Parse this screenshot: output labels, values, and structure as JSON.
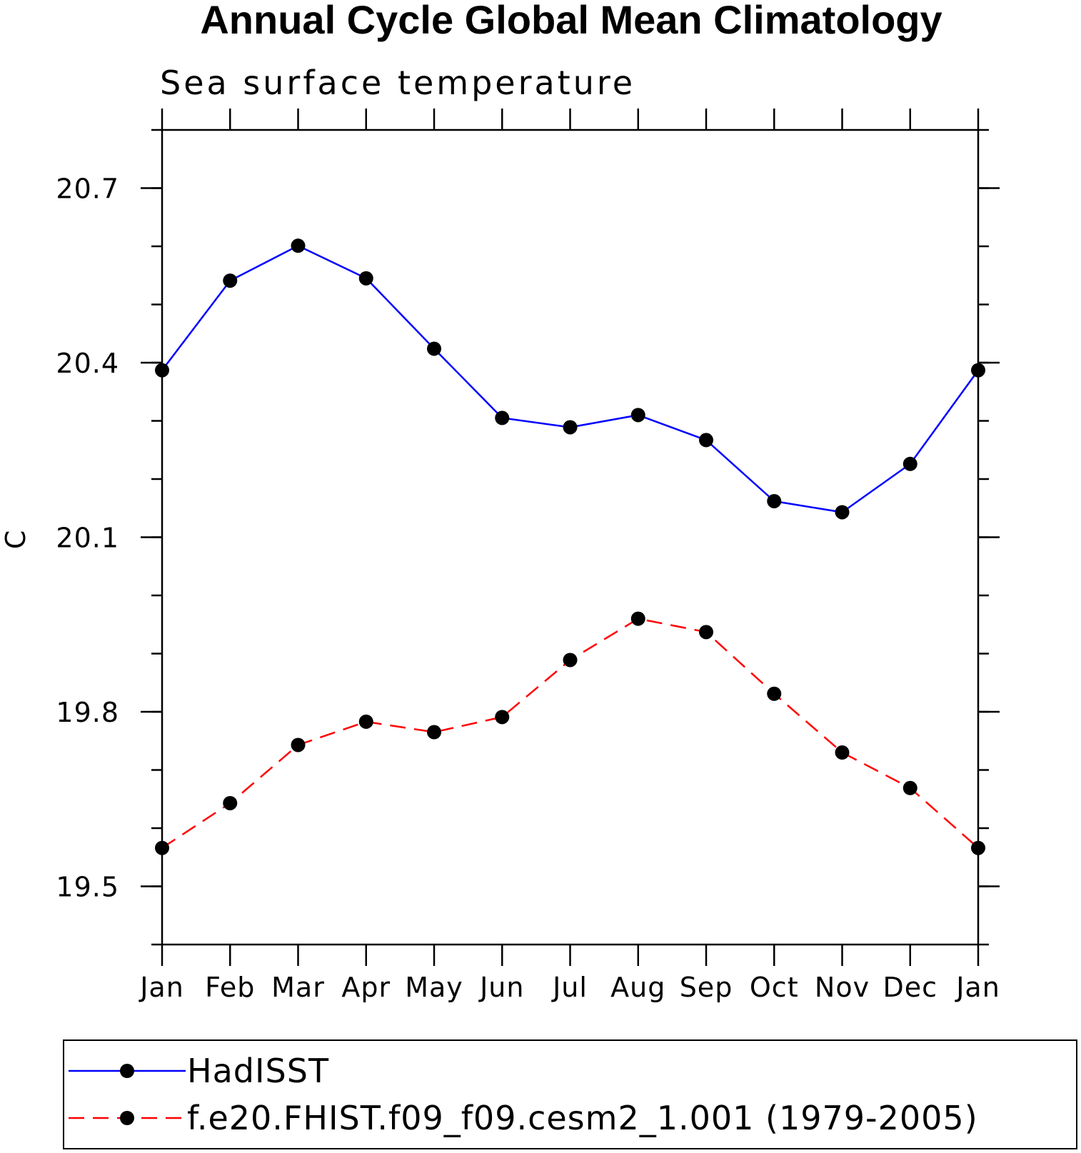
{
  "chart_data": {
    "type": "line",
    "title": "Annual Cycle Global Mean Climatology",
    "subtitle": "Sea surface temperature",
    "ylabel": "C",
    "xlabel": "",
    "categories": [
      "Jan",
      "Feb",
      "Mar",
      "Apr",
      "May",
      "Jun",
      "Jul",
      "Aug",
      "Sep",
      "Oct",
      "Nov",
      "Dec",
      "Jan"
    ],
    "ylim": [
      19.4,
      20.8
    ],
    "yticks": [
      19.5,
      19.8,
      20.1,
      20.4,
      20.7
    ],
    "ytick_labels": [
      "19.5",
      "19.8",
      "20.1",
      "20.4",
      "20.7"
    ],
    "ymajor_step": 0.3,
    "yminor_step": 0.1,
    "grid": false,
    "legend_position": "bottom",
    "series": [
      {
        "name": "HadISST",
        "color": "#0000ff",
        "line_style": "solid",
        "marker": "filled-circle",
        "values": [
          20.387,
          20.541,
          20.601,
          20.545,
          20.424,
          20.305,
          20.289,
          20.31,
          20.267,
          20.162,
          20.143,
          20.226,
          20.387
        ]
      },
      {
        "name": "f.e20.FHIST.f09_f09.cesm2_1.001 (1979-2005)",
        "color": "#ff0000",
        "line_style": "dashed",
        "marker": "filled-circle",
        "values": [
          19.566,
          19.643,
          19.743,
          19.783,
          19.765,
          19.791,
          19.889,
          19.96,
          19.937,
          19.831,
          19.73,
          19.669,
          19.566
        ]
      }
    ]
  }
}
